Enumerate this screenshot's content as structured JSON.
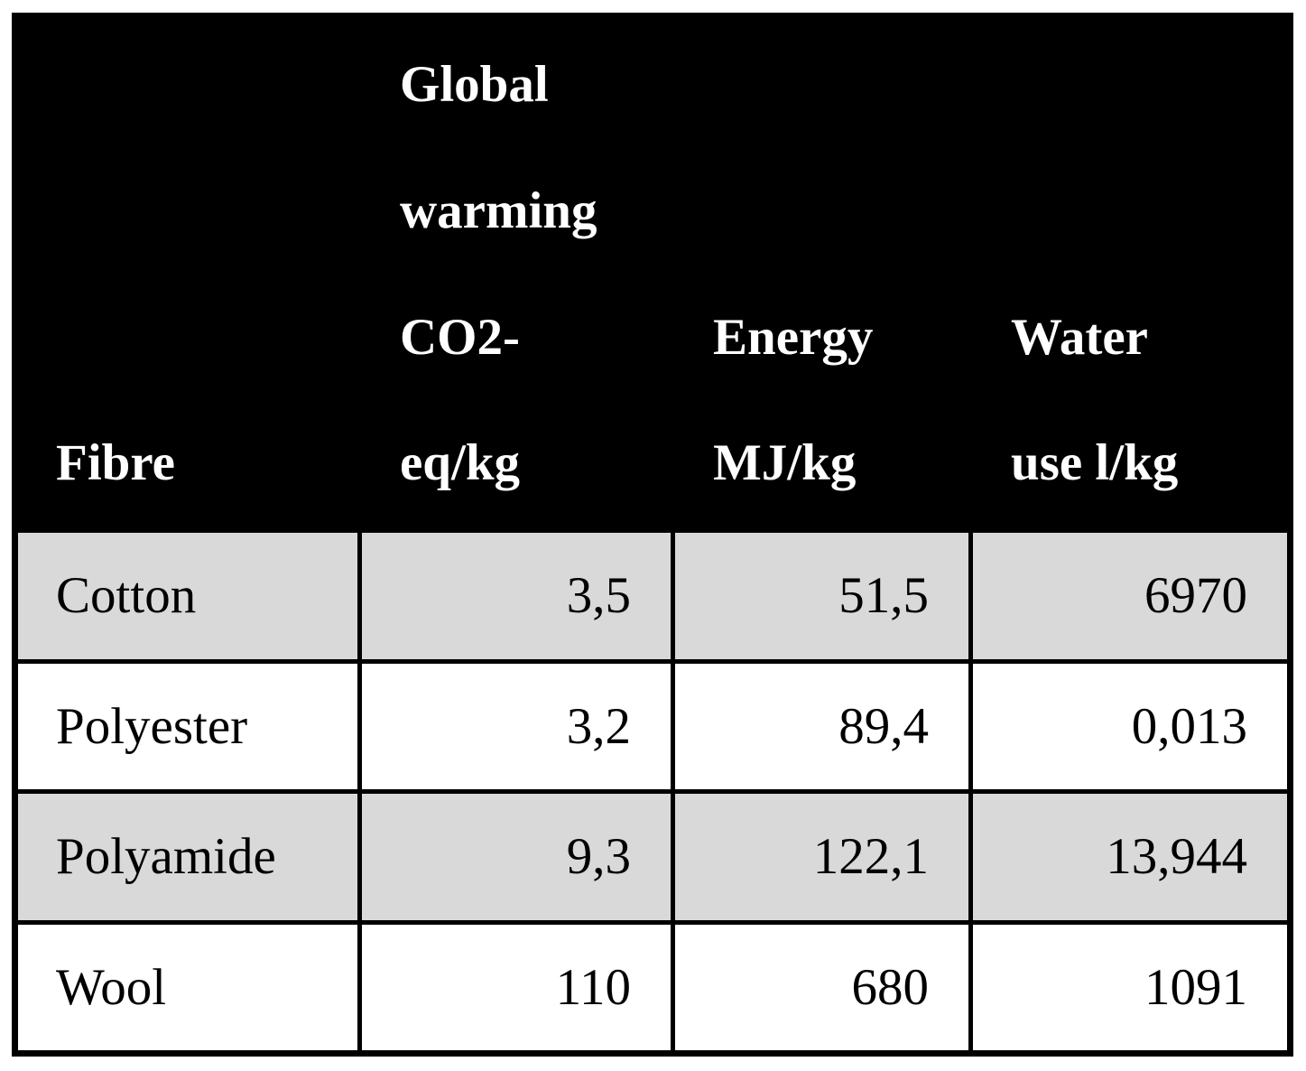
{
  "table": {
    "header": {
      "fibre": "Fibre",
      "global_warming": "Global\nwarming\nCO2-\neq/kg",
      "energy": "Energy\nMJ/kg",
      "water": "Water\nuse l/kg"
    },
    "rows": [
      {
        "name": "Cotton",
        "co2": "3,5",
        "energy": "51,5",
        "water": "6970"
      },
      {
        "name": "Polyester",
        "co2": "3,2",
        "energy": "89,4",
        "water": "0,013"
      },
      {
        "name": "Polyamide",
        "co2": "9,3",
        "energy": "122,1",
        "water": "13,944"
      },
      {
        "name": "Wool",
        "co2": "110",
        "energy": "680",
        "water": "1091"
      }
    ]
  },
  "chart_data": {
    "type": "table",
    "columns": [
      "Fibre",
      "Global warming CO2-eq/kg",
      "Energy MJ/kg",
      "Water use l/kg"
    ],
    "rows": [
      [
        "Cotton",
        "3,5",
        "51,5",
        "6970"
      ],
      [
        "Polyester",
        "3,2",
        "89,4",
        "0,013"
      ],
      [
        "Polyamide",
        "9,3",
        "122,1",
        "13,944"
      ],
      [
        "Wool",
        "110",
        "680",
        "1091"
      ]
    ]
  },
  "colors": {
    "header_bg": "#000000",
    "header_text": "#ffffff",
    "row_shaded_bg": "#d9d9d9",
    "row_plain_bg": "#ffffff",
    "border": "#000000",
    "body_text": "#000000"
  }
}
